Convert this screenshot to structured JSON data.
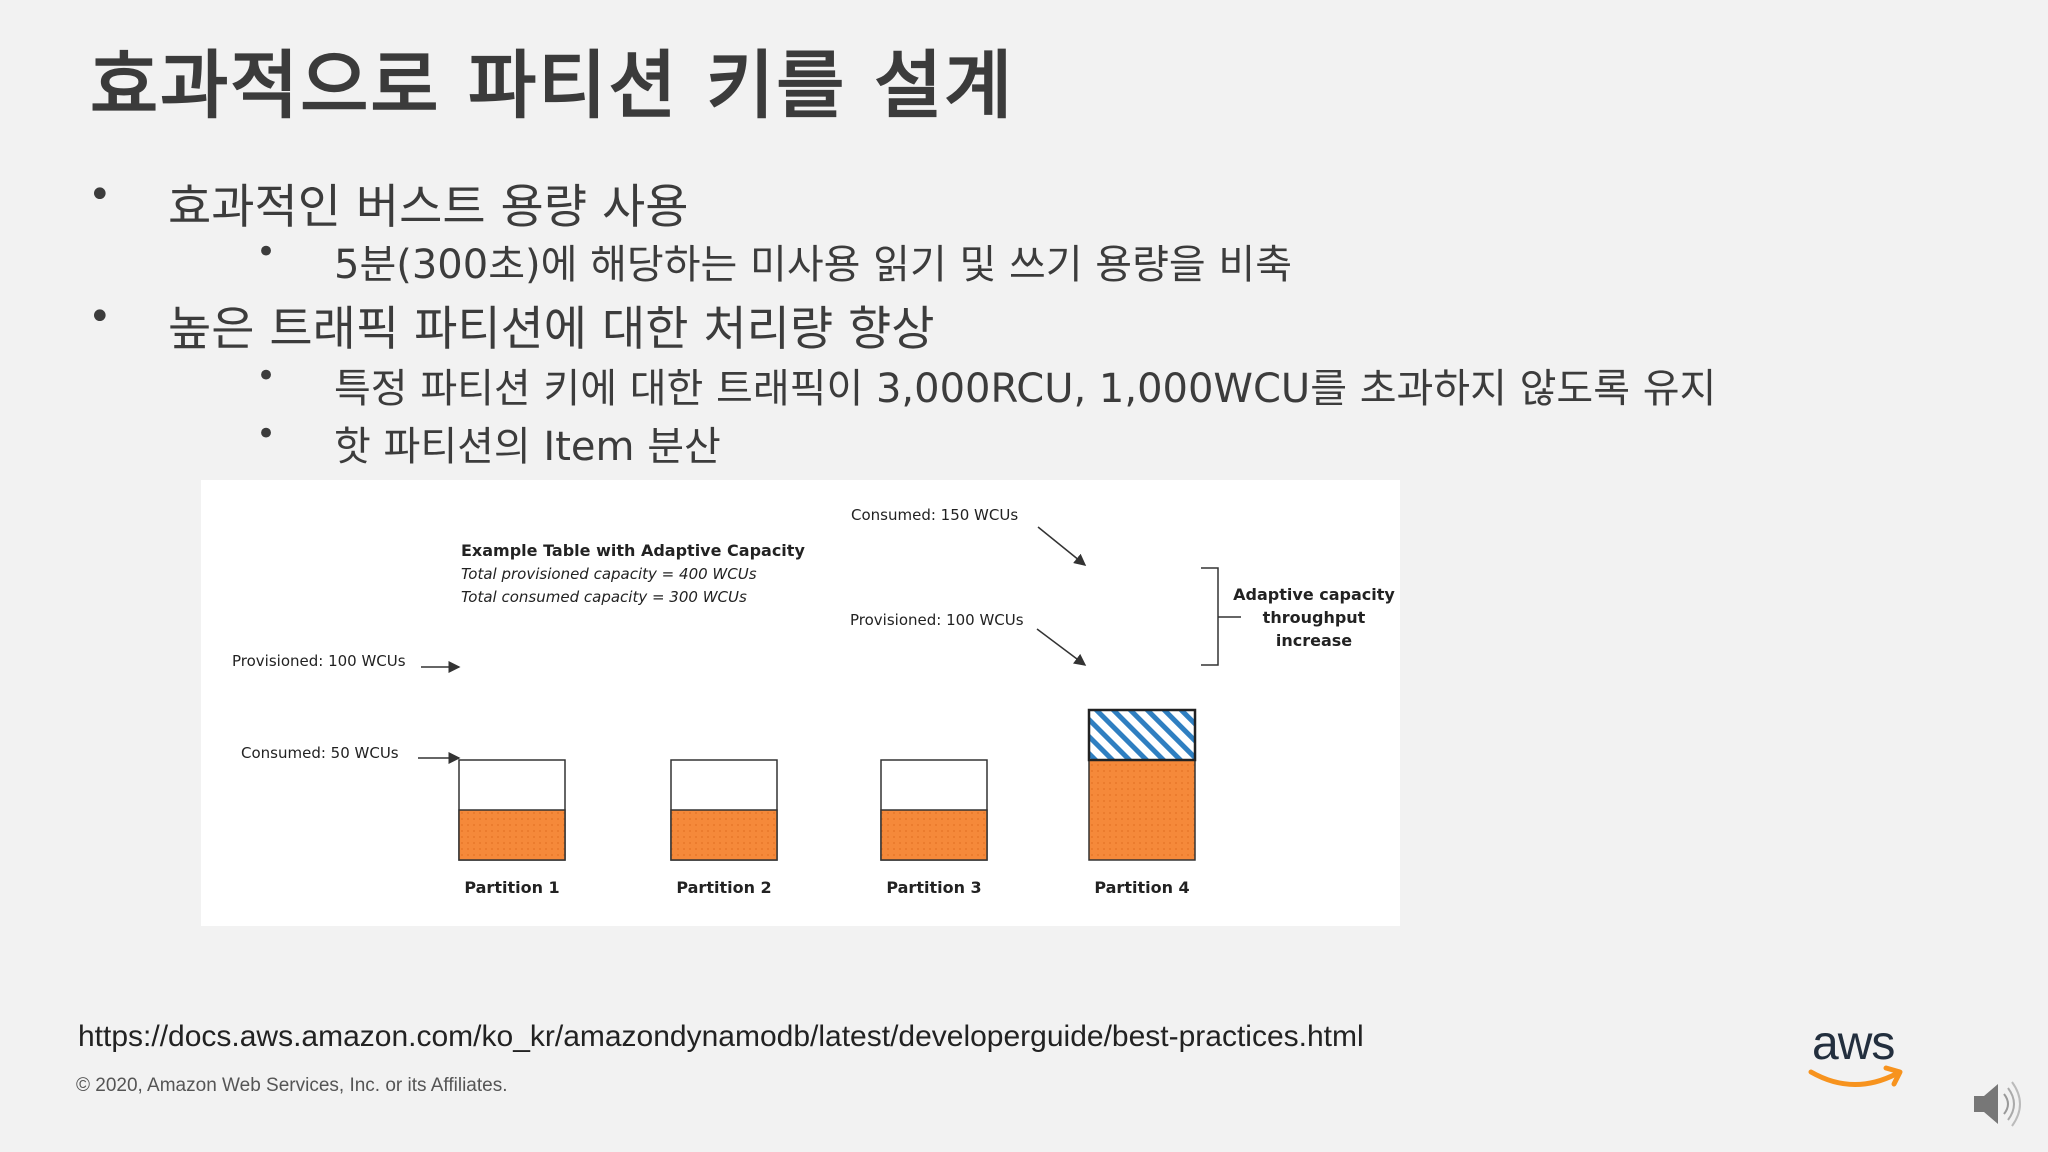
{
  "slide": {
    "title": "효과적으로 파티션 키를 설계",
    "bullets": [
      {
        "level": 1,
        "text": "효과적인 버스트 용량 사용"
      },
      {
        "level": 2,
        "text": "5분(300초)에 해당하는 미사용 읽기 및 쓰기 용량을 비축"
      },
      {
        "level": 1,
        "text": "높은 트래픽 파티션에 대한 처리량 향상"
      },
      {
        "level": 2,
        "text": "특정 파티션 키에 대한 트래픽이 3,000RCU, 1,000WCU를 초과하지 않도록 유지"
      },
      {
        "level": 2,
        "text": " 핫 파티션의 Item 분산"
      }
    ],
    "bullet_symbol": "•",
    "reference_url": "https://docs.aws.amazon.com/ko_kr/amazondynamodb/latest/developerguide/best-practices.html",
    "copyright": "© 2020, Amazon Web Services, Inc. or its Affiliates.",
    "logo_text": "aws"
  },
  "figure": {
    "title": "Example Table with Adaptive Capacity",
    "line1": "Total provisioned capacity = 400 WCUs",
    "line2": "Total consumed capacity = 300 WCUs",
    "provisioned_label": "Provisioned: 100 WCUs",
    "consumed_label": "Consumed: 50 WCUs",
    "p4_consumed_label": "Consumed: 150 WCUs",
    "p4_provisioned_label": "Provisioned: 100 WCUs",
    "adaptive_label": [
      "Adaptive capacity",
      "throughput",
      "increase"
    ],
    "partitions": [
      {
        "name": "Partition 1",
        "provisioned": 100,
        "consumed": 50
      },
      {
        "name": "Partition 2",
        "provisioned": 100,
        "consumed": 50
      },
      {
        "name": "Partition 3",
        "provisioned": 100,
        "consumed": 50
      },
      {
        "name": "Partition 4",
        "provisioned": 100,
        "consumed": 150
      }
    ],
    "colors": {
      "consumed": "#f5893a",
      "adaptive_stripe": "#2f7fc1",
      "outline": "#333333"
    }
  }
}
